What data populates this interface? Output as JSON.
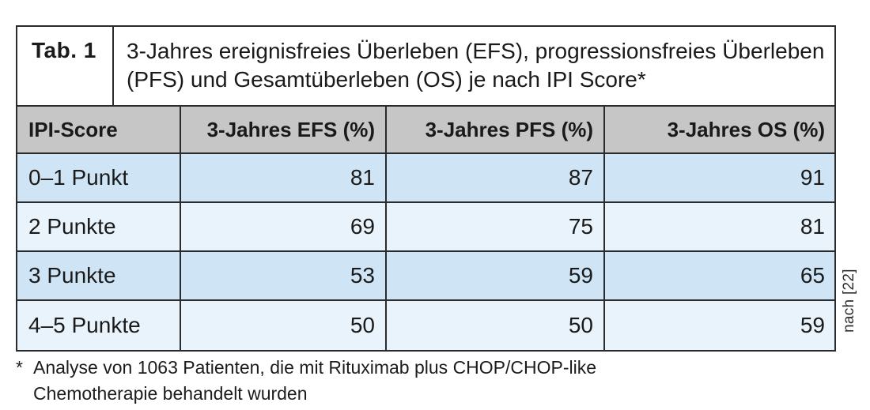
{
  "table": {
    "label": "Tab. 1",
    "title": "3-Jahres ereignisfreies Überleben (EFS), progressionsfreies Überleben (PFS) und Gesamtüberleben (OS) je nach IPI Score*",
    "columns": [
      "IPI-Score",
      "3-Jahres EFS (%)",
      "3-Jahres PFS (%)",
      "3-Jahres OS (%)"
    ],
    "rows": [
      {
        "ipi": "0–1 Punkt",
        "efs": "81",
        "pfs": "87",
        "os": "91"
      },
      {
        "ipi": "2 Punkte",
        "efs": "69",
        "pfs": "75",
        "os": "81"
      },
      {
        "ipi": "3 Punkte",
        "efs": "53",
        "pfs": "59",
        "os": "65"
      },
      {
        "ipi": "4–5 Punkte",
        "efs": "50",
        "pfs": "50",
        "os": "59"
      }
    ],
    "source": "nach [22]"
  },
  "footnote": {
    "marker": "*",
    "text": "Analyse von 1063 Patienten, die mit Rituximab plus CHOP/CHOP-like Chemotherapie behandelt wurden"
  },
  "colors": {
    "header_bg": "#c6c6c6",
    "row_odd_bg": "#cfe5f6",
    "row_even_bg": "#e8f3fb",
    "border": "#2b2b2b",
    "text": "#1a1a1a"
  }
}
